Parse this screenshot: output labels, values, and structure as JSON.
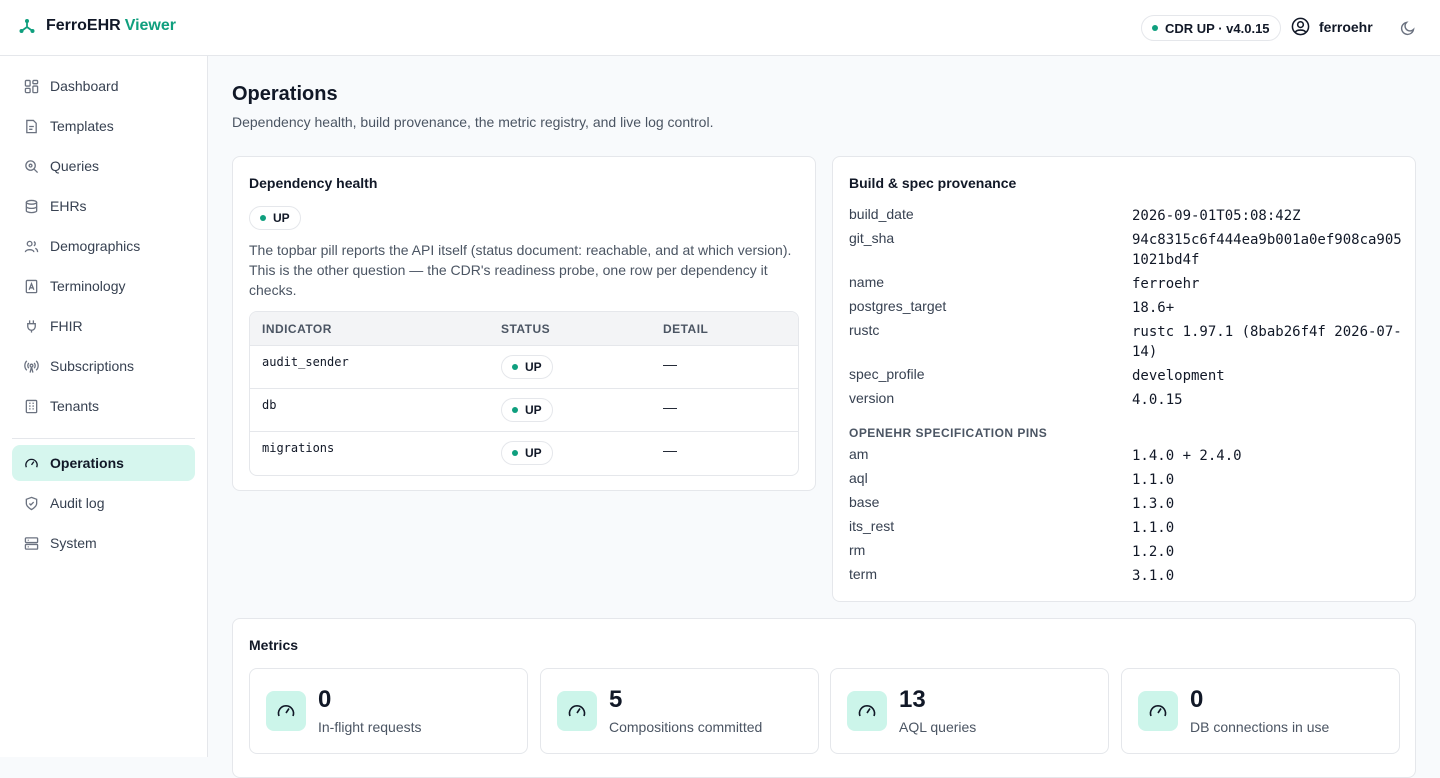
{
  "brand": {
    "name": "FerroEHR",
    "accent": "Viewer"
  },
  "topbar": {
    "cdr_status": "CDR UP · v4.0.15",
    "username": "ferroehr"
  },
  "sidebar": {
    "items": [
      {
        "label": "Dashboard",
        "icon": "dashboard-icon"
      },
      {
        "label": "Templates",
        "icon": "templates-icon"
      },
      {
        "label": "Queries",
        "icon": "queries-icon"
      },
      {
        "label": "EHRs",
        "icon": "database-icon"
      },
      {
        "label": "Demographics",
        "icon": "users-icon"
      },
      {
        "label": "Terminology",
        "icon": "book-icon"
      },
      {
        "label": "FHIR",
        "icon": "plug-icon"
      },
      {
        "label": "Subscriptions",
        "icon": "broadcast-icon"
      },
      {
        "label": "Tenants",
        "icon": "building-icon"
      },
      {
        "label": "Operations",
        "icon": "gauge-icon",
        "active": true
      },
      {
        "label": "Audit log",
        "icon": "shield-icon"
      },
      {
        "label": "System",
        "icon": "server-icon"
      }
    ]
  },
  "page": {
    "title": "Operations",
    "subtitle": "Dependency health, build provenance, the metric registry, and live log control."
  },
  "dependency": {
    "title": "Dependency health",
    "status": "UP",
    "description": "The topbar pill reports the API itself (status document: reachable, and at which version). This is the other question — the CDR's readiness probe, one row per dependency it checks.",
    "columns": [
      "INDICATOR",
      "STATUS",
      "DETAIL"
    ],
    "rows": [
      {
        "indicator": "audit_sender",
        "status": "UP",
        "detail": "—"
      },
      {
        "indicator": "db",
        "status": "UP",
        "detail": "—"
      },
      {
        "indicator": "migrations",
        "status": "UP",
        "detail": "—"
      }
    ]
  },
  "provenance": {
    "title": "Build & spec provenance",
    "build": [
      {
        "key": "build_date",
        "value": "2026-09-01T05:08:42Z"
      },
      {
        "key": "git_sha",
        "value": "94c8315c6f444ea9b001a0ef908ca9051021bd4f"
      },
      {
        "key": "name",
        "value": "ferroehr"
      },
      {
        "key": "postgres_target",
        "value": "18.6+"
      },
      {
        "key": "rustc",
        "value": "rustc 1.97.1 (8bab26f4f 2026-07-14)"
      },
      {
        "key": "spec_profile",
        "value": "development"
      },
      {
        "key": "version",
        "value": "4.0.15"
      }
    ],
    "pins_heading": "OPENEHR SPECIFICATION PINS",
    "pins": [
      {
        "key": "am",
        "value": "1.4.0 + 2.4.0"
      },
      {
        "key": "aql",
        "value": "1.1.0"
      },
      {
        "key": "base",
        "value": "1.3.0"
      },
      {
        "key": "its_rest",
        "value": "1.1.0"
      },
      {
        "key": "rm",
        "value": "1.2.0"
      },
      {
        "key": "term",
        "value": "3.1.0"
      }
    ]
  },
  "metrics": {
    "title": "Metrics",
    "items": [
      {
        "value": "0",
        "label": "In-flight requests"
      },
      {
        "value": "5",
        "label": "Compositions committed"
      },
      {
        "value": "13",
        "label": "AQL queries"
      },
      {
        "value": "0",
        "label": "DB connections in use"
      }
    ]
  },
  "colors": {
    "accent": "#0f9f7e",
    "active_bg": "#d6f6ee"
  }
}
